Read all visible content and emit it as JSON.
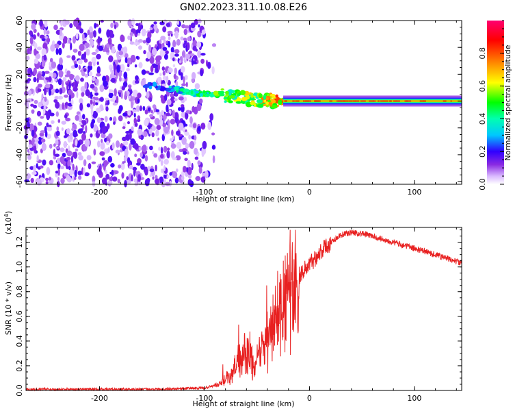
{
  "title": "GN02.2023.311.10.08.E26",
  "colors": {
    "spectrum_colormap": [
      "#ffffff",
      "#d9b8ff",
      "#8a2be2",
      "#4b00ff",
      "#0000ff",
      "#00c8ff",
      "#00ff66",
      "#ffff00",
      "#ff8000",
      "#ff0000",
      "#ff0070"
    ],
    "snr_line": "#e82020"
  },
  "chart_data": [
    {
      "type": "heatmap",
      "title": "GN02.2023.311.10.08.E26",
      "xlabel": "Height of straight line (km)",
      "ylabel": "Frequency (Hz)",
      "xlim": [
        -270,
        145
      ],
      "ylim": [
        -62,
        60
      ],
      "xticks": [
        -200,
        -100,
        0,
        100
      ],
      "xticklabels": [
        "-200",
        "-100",
        "0",
        "100"
      ],
      "yticks": [
        60,
        40,
        20,
        0,
        -20,
        -40,
        -60
      ],
      "yticklabels": [
        "60",
        "40",
        "20",
        "0",
        "-20",
        "-40",
        "-60"
      ],
      "colorbar": {
        "label": "Normalized spectral amplitude",
        "range": [
          0,
          1
        ],
        "ticks": [
          0.0,
          0.2,
          0.4,
          0.6,
          0.8
        ],
        "ticklabels": [
          "0.0",
          "0.2",
          "0.4",
          "0.6",
          "0.8"
        ]
      },
      "features": {
        "noise_region_x": [
          -270,
          -95
        ],
        "drift_track": [
          {
            "x": -155,
            "f": 12,
            "amp": 0.25
          },
          {
            "x": -130,
            "f": 9,
            "amp": 0.35
          },
          {
            "x": -110,
            "f": 6,
            "amp": 0.45
          },
          {
            "x": -90,
            "f": 5,
            "amp": 0.5
          },
          {
            "x": -70,
            "f": 3,
            "amp": 0.55
          },
          {
            "x": -50,
            "f": 1,
            "amp": 0.6
          },
          {
            "x": -35,
            "f": 0,
            "amp": 0.7
          },
          {
            "x": -20,
            "f": 0,
            "amp": 0.75
          }
        ],
        "steady_line": {
          "x": [
            -25,
            145
          ],
          "f": 0,
          "amp_peak": 1.0
        }
      }
    },
    {
      "type": "line",
      "xlabel": "Height of straight line (km)",
      "ylabel": "SNR (10 * v/v)",
      "yscale_label": "(x10",
      "yscale_exp": "4",
      "yscale_close": ")",
      "xlim": [
        -270,
        145
      ],
      "ylim": [
        0,
        1.32
      ],
      "xticks": [
        -200,
        -100,
        0,
        100
      ],
      "xticklabels": [
        "-200",
        "-100",
        "0",
        "100"
      ],
      "yticks": [
        0.0,
        0.2,
        0.4,
        0.6,
        0.8,
        1.0,
        1.2
      ],
      "yticklabels": [
        "0.0",
        "0.2",
        "0.4",
        "0.6",
        "0.8",
        "1.0",
        "1.2"
      ],
      "series": [
        {
          "x": [
            -270,
            -200,
            -150,
            -100,
            -85,
            -75,
            -65,
            -58,
            -52,
            -45,
            -38,
            -30,
            -24,
            -18,
            -12,
            -8,
            0,
            10,
            20,
            30,
            40,
            50,
            60,
            80,
            100,
            120,
            145
          ],
          "y": [
            0.01,
            0.01,
            0.01,
            0.02,
            0.05,
            0.12,
            0.25,
            0.32,
            0.18,
            0.35,
            0.45,
            0.6,
            0.7,
            0.85,
            0.9,
            0.95,
            1.02,
            1.12,
            1.2,
            1.26,
            1.28,
            1.27,
            1.25,
            1.2,
            1.15,
            1.1,
            1.03
          ]
        }
      ]
    }
  ]
}
